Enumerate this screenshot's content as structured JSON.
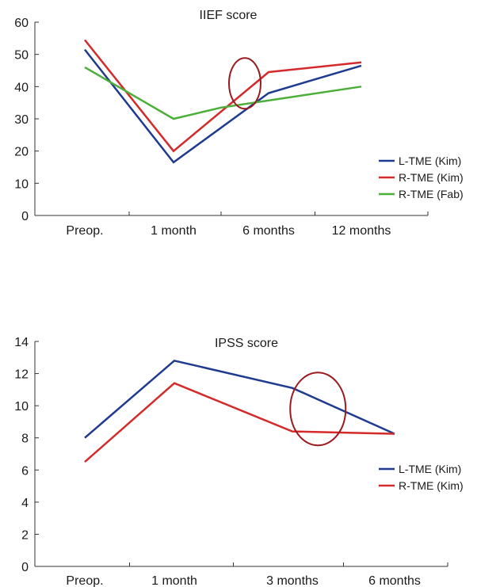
{
  "chart_data": [
    {
      "type": "line",
      "title": "IIEF score",
      "categories": [
        "Preop.",
        "1 month",
        "6 months",
        "12 months"
      ],
      "ylim": [
        0,
        60
      ],
      "yticks": [
        0,
        10,
        20,
        30,
        40,
        50,
        60
      ],
      "grid": false,
      "legend_position": "right",
      "series": [
        {
          "name": "L-TME (Kim)",
          "color": "#1f3b8f",
          "values": [
            51.5,
            16.5,
            38,
            46.5
          ]
        },
        {
          "name": "R-TME (Kim)",
          "color": "#d42a2a",
          "values": [
            54.5,
            20,
            44.5,
            47.5
          ]
        },
        {
          "name": "R-TME (Fab)",
          "color": "#4caf3a",
          "values": [
            46,
            30,
            null,
            40
          ]
        }
      ],
      "extra_points": [
        {
          "series": 0,
          "x": 2.0,
          "y": 38
        },
        {
          "series": 2,
          "x": 1.5,
          "y": 33.5
        }
      ],
      "highlight": {
        "x": 1.75,
        "y": 41,
        "color": "#9a1b1f"
      }
    },
    {
      "type": "line",
      "title": "IPSS score",
      "categories": [
        "Preop.",
        "1 month",
        "3 months",
        "6 months"
      ],
      "ylim": [
        0,
        14
      ],
      "yticks": [
        0,
        2,
        4,
        6,
        8,
        10,
        12,
        14
      ],
      "grid": false,
      "legend_position": "right",
      "series": [
        {
          "name": "L-TME (Kim)",
          "color": "#1f3b8f",
          "values": [
            8,
            12.8,
            11.1,
            8.25
          ]
        },
        {
          "name": "R-TME (Kim)",
          "color": "#d42a2a",
          "values": [
            6.5,
            11.4,
            8.4,
            8.25
          ]
        }
      ],
      "highlight": {
        "x": 2.25,
        "y": 9.8,
        "color": "#9a1b1f"
      }
    }
  ]
}
